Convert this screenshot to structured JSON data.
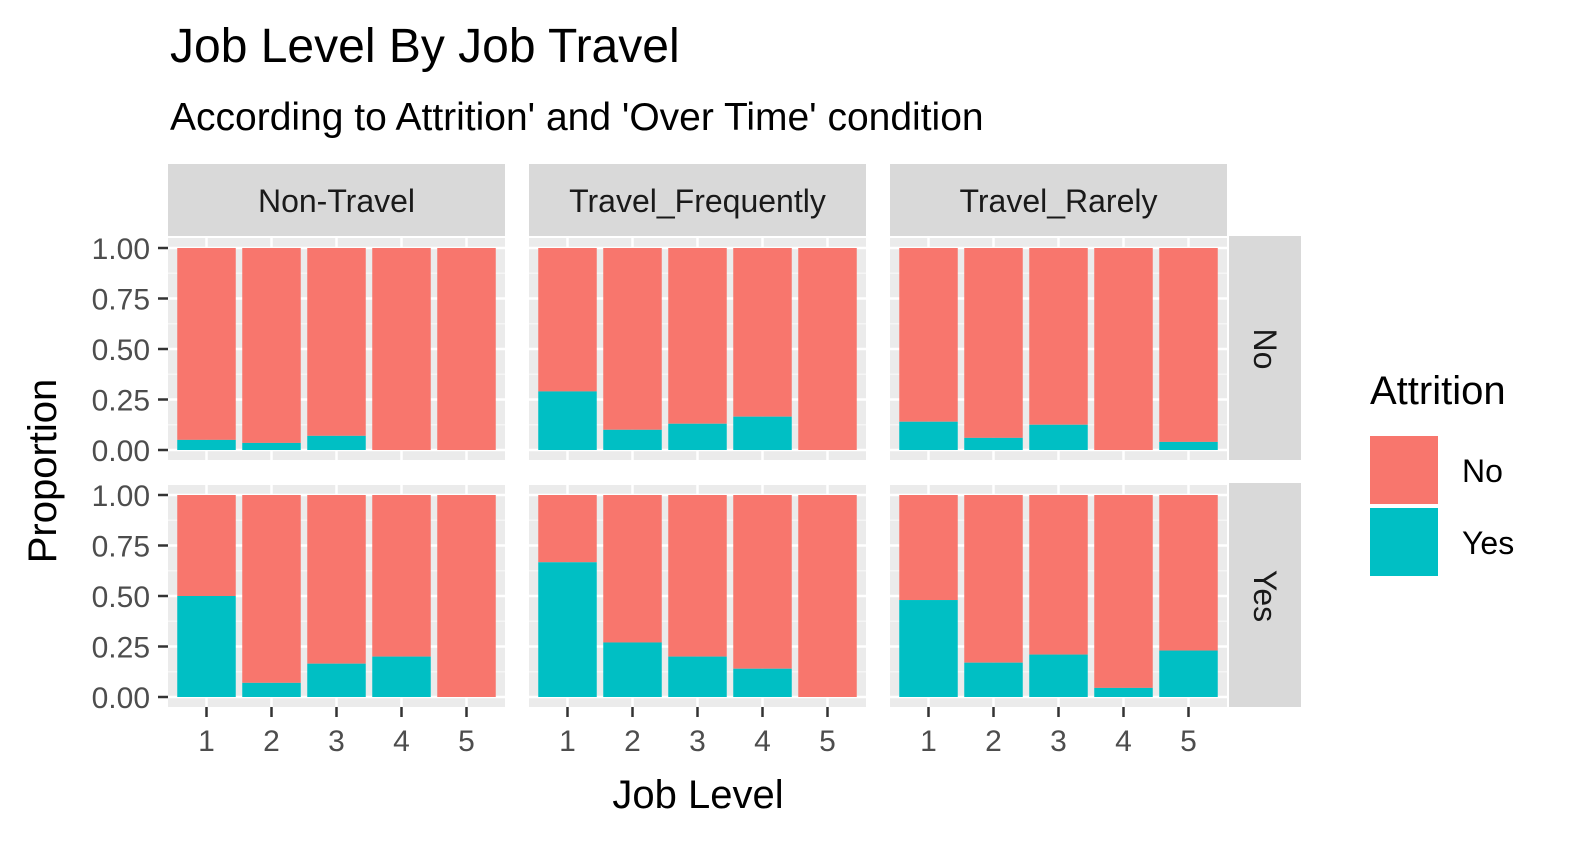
{
  "chart_data": {
    "type": "bar",
    "stacked": true,
    "title": "Job Level By Job Travel",
    "subtitle": "According to Attrition' and 'Over Time' condition",
    "xlabel": "Job Level",
    "ylabel": "Proportion",
    "categories": [
      "1",
      "2",
      "3",
      "4",
      "5"
    ],
    "y_ticks": [
      "0.00",
      "0.25",
      "0.50",
      "0.75",
      "1.00"
    ],
    "ylim": [
      0,
      1
    ],
    "facet_columns": [
      "Non-Travel",
      "Travel_Frequently",
      "Travel_Rarely"
    ],
    "facet_rows": [
      "No",
      "Yes"
    ],
    "legend": {
      "title": "Attrition",
      "position": "right",
      "items": [
        {
          "label": "No",
          "color": "#F8766D"
        },
        {
          "label": "Yes",
          "color": "#00BFC4"
        }
      ]
    },
    "panels": [
      {
        "column": "Non-Travel",
        "row": "No",
        "yes_share": [
          0.05,
          0.035,
          0.07,
          0.0,
          0.0
        ]
      },
      {
        "column": "Travel_Frequently",
        "row": "No",
        "yes_share": [
          0.29,
          0.1,
          0.13,
          0.165,
          0.0
        ]
      },
      {
        "column": "Travel_Rarely",
        "row": "No",
        "yes_share": [
          0.14,
          0.06,
          0.125,
          0.0,
          0.04
        ]
      },
      {
        "column": "Non-Travel",
        "row": "Yes",
        "yes_share": [
          0.5,
          0.07,
          0.165,
          0.2,
          0.0
        ]
      },
      {
        "column": "Travel_Frequently",
        "row": "Yes",
        "yes_share": [
          0.667,
          0.27,
          0.2,
          0.14,
          0.0
        ]
      },
      {
        "column": "Travel_Rarely",
        "row": "Yes",
        "yes_share": [
          0.48,
          0.17,
          0.21,
          0.045,
          0.23
        ]
      }
    ]
  }
}
